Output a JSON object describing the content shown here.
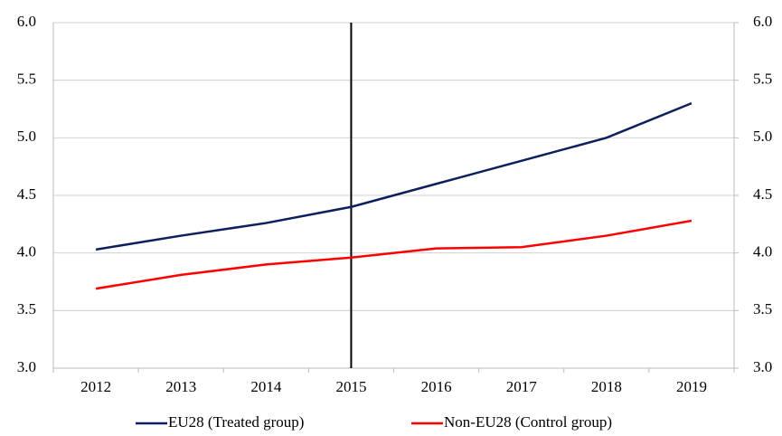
{
  "chart_data": {
    "type": "line",
    "categories": [
      "2012",
      "2013",
      "2014",
      "2015",
      "2016",
      "2017",
      "2018",
      "2019"
    ],
    "series": [
      {
        "name": "EU28 (Treated group)",
        "color": "#0d1f5c",
        "values": [
          4.03,
          4.15,
          4.26,
          4.4,
          4.6,
          4.8,
          5.0,
          5.3
        ]
      },
      {
        "name": "Non-EU28 (Control group)",
        "color": "#ff0000",
        "values": [
          3.69,
          3.81,
          3.9,
          3.96,
          4.04,
          4.05,
          4.15,
          4.28
        ]
      }
    ],
    "ylim": [
      3.0,
      6.0
    ],
    "yticks": [
      {
        "value": 3,
        "label": "3.0"
      },
      3.5,
      {
        "value": 4,
        "label": "4.0"
      },
      4.5,
      {
        "value": 5,
        "label": "5.0"
      },
      5.5,
      {
        "value": 6,
        "label": "6.0"
      }
    ],
    "y2lim": [
      3.0,
      6.0
    ],
    "y2ticks": [
      {
        "value": 3,
        "label": "3.0"
      },
      3.5,
      {
        "value": 4,
        "label": "4.0"
      },
      4.5,
      {
        "value": 5,
        "label": "5.0"
      },
      5.5,
      {
        "value": 6,
        "label": "6.0"
      }
    ],
    "vertical_line": "2015",
    "grid": true,
    "legend": "bottom"
  }
}
